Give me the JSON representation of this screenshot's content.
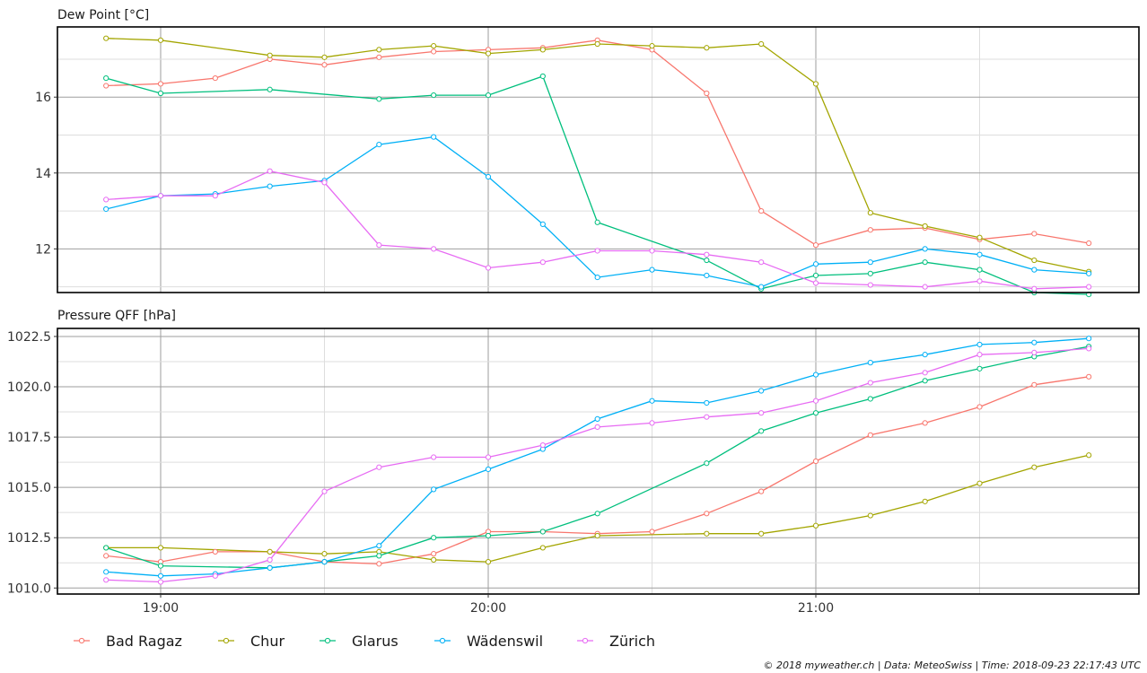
{
  "chart_data": [
    {
      "type": "line",
      "title": "Dew Point [°C]",
      "xlabel": "",
      "ylabel": "",
      "x": [
        "18:50",
        "19:00",
        "19:10",
        "19:20",
        "19:30",
        "19:40",
        "19:50",
        "20:00",
        "20:10",
        "20:20",
        "20:30",
        "20:40",
        "20:50",
        "21:00",
        "21:10",
        "21:20",
        "21:30",
        "21:40",
        "21:50"
      ],
      "xticks": [
        "19:00",
        "20:00",
        "21:00"
      ],
      "yticks": [
        12,
        14,
        16
      ],
      "ylim": [
        10.85,
        17.85
      ],
      "grid": true,
      "series": [
        {
          "name": "Bad Ragaz",
          "values": [
            16.3,
            16.35,
            16.5,
            17.0,
            16.85,
            17.05,
            17.2,
            17.25,
            17.3,
            17.5,
            17.25,
            16.1,
            13.0,
            12.1,
            12.5,
            12.55,
            12.25,
            12.4,
            12.15
          ]
        },
        {
          "name": "Chur",
          "values": [
            17.55,
            17.5,
            null,
            17.1,
            17.05,
            17.25,
            17.35,
            17.15,
            17.25,
            17.4,
            17.35,
            17.3,
            17.4,
            16.35,
            12.95,
            12.6,
            12.3,
            11.7,
            11.4
          ]
        },
        {
          "name": "Glarus",
          "values": [
            16.5,
            16.1,
            null,
            16.2,
            null,
            15.95,
            16.05,
            16.05,
            16.55,
            12.7,
            null,
            11.7,
            10.95,
            11.3,
            11.35,
            11.65,
            11.45,
            10.85,
            10.8
          ]
        },
        {
          "name": "Wädenswil",
          "values": [
            13.05,
            13.4,
            13.45,
            13.65,
            13.8,
            14.75,
            14.95,
            13.9,
            12.65,
            11.25,
            11.45,
            11.3,
            11.0,
            11.6,
            11.65,
            12.0,
            11.85,
            11.45,
            11.35
          ]
        },
        {
          "name": "Zürich",
          "values": [
            13.3,
            13.4,
            13.4,
            14.05,
            13.75,
            12.1,
            12.0,
            11.5,
            11.65,
            11.95,
            11.95,
            11.85,
            11.65,
            11.1,
            11.05,
            11.0,
            11.15,
            10.95,
            11.0
          ]
        }
      ]
    },
    {
      "type": "line",
      "title": "Pressure QFF [hPa]",
      "xlabel": "",
      "ylabel": "",
      "x": [
        "18:50",
        "19:00",
        "19:10",
        "19:20",
        "19:30",
        "19:40",
        "19:50",
        "20:00",
        "20:10",
        "20:20",
        "20:30",
        "20:40",
        "20:50",
        "21:00",
        "21:10",
        "21:20",
        "21:30",
        "21:40",
        "21:50"
      ],
      "xticks": [
        "19:00",
        "20:00",
        "21:00"
      ],
      "yticks": [
        1010.0,
        1012.5,
        1015.0,
        1017.5,
        1020.0,
        1022.5
      ],
      "ylim": [
        1009.7,
        1022.9
      ],
      "grid": true,
      "series": [
        {
          "name": "Bad Ragaz",
          "values": [
            1011.6,
            1011.3,
            1011.8,
            1011.8,
            1011.3,
            1011.2,
            1011.7,
            1012.8,
            1012.8,
            1012.7,
            1012.8,
            1013.7,
            1014.8,
            1016.3,
            1017.6,
            1018.2,
            1019.0,
            1020.1,
            1020.5
          ]
        },
        {
          "name": "Chur",
          "values": [
            1012.0,
            1012.0,
            null,
            1011.8,
            1011.7,
            1011.8,
            1011.4,
            1011.3,
            1012.0,
            1012.6,
            null,
            1012.7,
            1012.7,
            1013.1,
            1013.6,
            1014.3,
            1015.2,
            1016.0,
            1016.6
          ]
        },
        {
          "name": "Glarus",
          "values": [
            1012.0,
            1011.1,
            null,
            1011.0,
            1011.3,
            1011.6,
            1012.5,
            1012.6,
            1012.8,
            1013.7,
            null,
            1016.2,
            1017.8,
            1018.7,
            1019.4,
            1020.3,
            1020.9,
            1021.5,
            1022.0
          ]
        },
        {
          "name": "Wädenswil",
          "values": [
            1010.8,
            1010.6,
            1010.7,
            1011.0,
            1011.3,
            1012.1,
            1014.9,
            1015.9,
            1016.9,
            1018.4,
            1019.3,
            1019.2,
            1019.8,
            1020.6,
            1021.2,
            1021.6,
            1022.1,
            1022.2,
            1022.4
          ]
        },
        {
          "name": "Zürich",
          "values": [
            1010.4,
            1010.3,
            1010.6,
            1011.4,
            1014.8,
            1016.0,
            1016.5,
            1016.5,
            1017.1,
            1018.0,
            1018.2,
            1018.5,
            1018.7,
            1019.3,
            1020.2,
            1020.7,
            1021.6,
            1021.7,
            1021.9
          ]
        }
      ]
    }
  ],
  "colors": {
    "Bad Ragaz": "#F8766D",
    "Chur": "#A3A500",
    "Glarus": "#00BF7D",
    "Wädenswil": "#00B0F6",
    "Zürich": "#E76BF3"
  },
  "legend": {
    "placement": "bottom",
    "items": [
      "Bad Ragaz",
      "Chur",
      "Glarus",
      "Wädenswil",
      "Zürich"
    ]
  },
  "credit": "© 2018 myweather.ch | Data: MeteoSwiss | Time: 2018-09-23 22:17:43 UTC"
}
